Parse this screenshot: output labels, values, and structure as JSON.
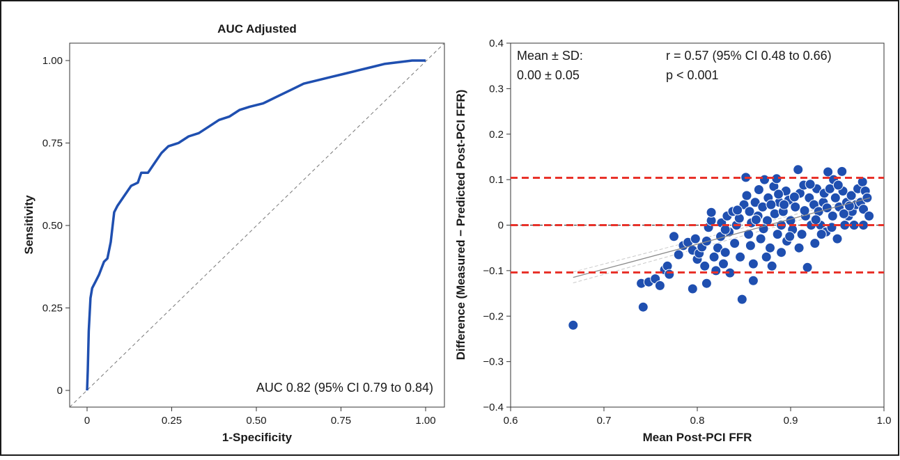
{
  "chart_data": [
    {
      "type": "line",
      "title": "AUC Adjusted",
      "xlabel": "1-Specificity",
      "ylabel": "Sensitivity",
      "xlim": [
        0,
        1
      ],
      "ylim": [
        0,
        1
      ],
      "x_ticks": [
        "0",
        "0.25",
        "0.50",
        "0.75",
        "1.00"
      ],
      "y_ticks": [
        "0",
        "0.25",
        "0.50",
        "0.75",
        "1.00"
      ],
      "annotation": "AUC 0.82 (95% CI 0.79 to 0.84)",
      "grid": false,
      "reference_line": "diagonal, dashed",
      "color": "#1f4fb0",
      "roc_curve": [
        [
          0,
          0
        ],
        [
          0.002,
          0.06
        ],
        [
          0.005,
          0.18
        ],
        [
          0.01,
          0.28
        ],
        [
          0.015,
          0.31
        ],
        [
          0.025,
          0.33
        ],
        [
          0.035,
          0.35
        ],
        [
          0.05,
          0.39
        ],
        [
          0.06,
          0.4
        ],
        [
          0.07,
          0.45
        ],
        [
          0.08,
          0.54
        ],
        [
          0.09,
          0.56
        ],
        [
          0.11,
          0.59
        ],
        [
          0.13,
          0.62
        ],
        [
          0.15,
          0.63
        ],
        [
          0.16,
          0.66
        ],
        [
          0.18,
          0.66
        ],
        [
          0.2,
          0.69
        ],
        [
          0.22,
          0.72
        ],
        [
          0.24,
          0.74
        ],
        [
          0.27,
          0.75
        ],
        [
          0.3,
          0.77
        ],
        [
          0.33,
          0.78
        ],
        [
          0.36,
          0.8
        ],
        [
          0.39,
          0.82
        ],
        [
          0.42,
          0.83
        ],
        [
          0.45,
          0.85
        ],
        [
          0.48,
          0.86
        ],
        [
          0.52,
          0.87
        ],
        [
          0.56,
          0.89
        ],
        [
          0.6,
          0.91
        ],
        [
          0.64,
          0.93
        ],
        [
          0.68,
          0.94
        ],
        [
          0.72,
          0.95
        ],
        [
          0.76,
          0.96
        ],
        [
          0.8,
          0.97
        ],
        [
          0.84,
          0.98
        ],
        [
          0.88,
          0.99
        ],
        [
          0.92,
          0.995
        ],
        [
          0.96,
          1.0
        ],
        [
          1.0,
          1.0
        ]
      ]
    },
    {
      "type": "scatter",
      "xlabel": "Mean Post-PCI FFR",
      "ylabel": "Difference (Measured − Predicted Post-PCI FFR)",
      "xlim": [
        0.6,
        1.0
      ],
      "ylim": [
        -0.4,
        0.4
      ],
      "x_ticks": [
        "0.6",
        "0.7",
        "0.8",
        "0.9",
        "1.0"
      ],
      "y_ticks": [
        "0.4",
        "0.3",
        "0.2",
        "0.1",
        "0",
        "−0.1",
        "−0.2",
        "−0.3",
        "−0.4"
      ],
      "annotations": {
        "mean_label": "Mean ± SD:",
        "mean_value": "0.00 ± 0.05",
        "r_label": "r = 0.57 (95% CI 0.48 to 0.66)",
        "p_label": "p < 0.001"
      },
      "grid": false,
      "point_color": "#1f4fb0",
      "limit_line_color": "#e8322a",
      "mean_difference": 0.0,
      "limits_of_agreement": [
        -0.104,
        0.104
      ],
      "zero_line": 0,
      "regression_line": {
        "x": [
          0.667,
          0.985
        ],
        "y": [
          -0.115,
          0.06
        ]
      },
      "points": [
        [
          0.667,
          -0.22
        ],
        [
          0.742,
          -0.18
        ],
        [
          0.74,
          -0.128
        ],
        [
          0.748,
          -0.125
        ],
        [
          0.755,
          -0.118
        ],
        [
          0.76,
          -0.133
        ],
        [
          0.765,
          -0.098
        ],
        [
          0.768,
          -0.09
        ],
        [
          0.77,
          -0.108
        ],
        [
          0.775,
          -0.025
        ],
        [
          0.78,
          -0.065
        ],
        [
          0.785,
          -0.045
        ],
        [
          0.79,
          -0.038
        ],
        [
          0.795,
          -0.14
        ],
        [
          0.795,
          -0.055
        ],
        [
          0.798,
          -0.03
        ],
        [
          0.8,
          -0.075
        ],
        [
          0.802,
          -0.062
        ],
        [
          0.805,
          -0.048
        ],
        [
          0.808,
          -0.09
        ],
        [
          0.81,
          -0.128
        ],
        [
          0.81,
          -0.035
        ],
        [
          0.812,
          -0.005
        ],
        [
          0.815,
          0.01
        ],
        [
          0.815,
          0.028
        ],
        [
          0.818,
          -0.07
        ],
        [
          0.82,
          -0.1
        ],
        [
          0.822,
          -0.05
        ],
        [
          0.825,
          -0.025
        ],
        [
          0.826,
          0.005
        ],
        [
          0.828,
          -0.085
        ],
        [
          0.83,
          -0.06
        ],
        [
          0.832,
          0.02
        ],
        [
          0.834,
          -0.015
        ],
        [
          0.835,
          -0.105
        ],
        [
          0.838,
          0.03
        ],
        [
          0.84,
          -0.04
        ],
        [
          0.842,
          0.0
        ],
        [
          0.845,
          0.015
        ],
        [
          0.846,
          -0.07
        ],
        [
          0.848,
          -0.163
        ],
        [
          0.85,
          0.045
        ],
        [
          0.852,
          0.105
        ],
        [
          0.853,
          0.065
        ],
        [
          0.855,
          -0.02
        ],
        [
          0.856,
          0.03
        ],
        [
          0.858,
          0.005
        ],
        [
          0.86,
          -0.085
        ],
        [
          0.86,
          -0.122
        ],
        [
          0.862,
          0.05
        ],
        [
          0.865,
          0.02
        ],
        [
          0.866,
          0.078
        ],
        [
          0.868,
          -0.03
        ],
        [
          0.87,
          0.04
        ],
        [
          0.872,
          0.1
        ],
        [
          0.874,
          -0.07
        ],
        [
          0.875,
          0.01
        ],
        [
          0.876,
          0.06
        ],
        [
          0.878,
          -0.05
        ],
        [
          0.88,
          -0.09
        ],
        [
          0.882,
          0.085
        ],
        [
          0.883,
          0.025
        ],
        [
          0.885,
          0.102
        ],
        [
          0.886,
          -0.02
        ],
        [
          0.888,
          0.05
        ],
        [
          0.89,
          -0.06
        ],
        [
          0.89,
          0.0
        ],
        [
          0.892,
          0.03
        ],
        [
          0.895,
          0.075
        ],
        [
          0.896,
          -0.035
        ],
        [
          0.898,
          0.055
        ],
        [
          0.9,
          0.01
        ],
        [
          0.902,
          -0.01
        ],
        [
          0.905,
          0.04
        ],
        [
          0.908,
          0.122
        ],
        [
          0.91,
          0.07
        ],
        [
          0.912,
          -0.02
        ],
        [
          0.914,
          0.088
        ],
        [
          0.916,
          0.02
        ],
        [
          0.918,
          -0.093
        ],
        [
          0.92,
          0.06
        ],
        [
          0.922,
          0.0
        ],
        [
          0.925,
          0.045
        ],
        [
          0.926,
          -0.04
        ],
        [
          0.928,
          0.08
        ],
        [
          0.93,
          0.03
        ],
        [
          0.932,
          0.0
        ],
        [
          0.935,
          0.05
        ],
        [
          0.936,
          0.07
        ],
        [
          0.938,
          -0.015
        ],
        [
          0.94,
          0.117
        ],
        [
          0.942,
          0.08
        ],
        [
          0.945,
          0.02
        ],
        [
          0.946,
          0.1
        ],
        [
          0.948,
          0.06
        ],
        [
          0.95,
          -0.03
        ],
        [
          0.952,
          0.04
        ],
        [
          0.955,
          0.118
        ],
        [
          0.956,
          0.075
        ],
        [
          0.958,
          0.0
        ],
        [
          0.96,
          0.05
        ],
        [
          0.962,
          0.02
        ],
        [
          0.965,
          0.065
        ],
        [
          0.966,
          0.03
        ],
        [
          0.968,
          0.0
        ],
        [
          0.97,
          0.045
        ],
        [
          0.972,
          0.08
        ],
        [
          0.975,
          0.05
        ],
        [
          0.977,
          0.095
        ],
        [
          0.978,
          0.035
        ],
        [
          0.98,
          0.075
        ],
        [
          0.982,
          0.06
        ],
        [
          0.984,
          0.02
        ],
        [
          0.978,
          0.0
        ],
        [
          0.83,
          -0.01
        ],
        [
          0.843,
          0.033
        ],
        [
          0.857,
          -0.045
        ],
        [
          0.863,
          0.012
        ],
        [
          0.871,
          -0.008
        ],
        [
          0.879,
          0.045
        ],
        [
          0.887,
          0.068
        ],
        [
          0.893,
          0.045
        ],
        [
          0.899,
          -0.025
        ],
        [
          0.904,
          0.062
        ],
        [
          0.909,
          -0.05
        ],
        [
          0.915,
          0.032
        ],
        [
          0.921,
          0.09
        ],
        [
          0.927,
          0.012
        ],
        [
          0.933,
          -0.02
        ],
        [
          0.939,
          0.038
        ],
        [
          0.944,
          -0.005
        ],
        [
          0.951,
          0.088
        ],
        [
          0.957,
          0.025
        ],
        [
          0.963,
          0.042
        ]
      ]
    }
  ]
}
